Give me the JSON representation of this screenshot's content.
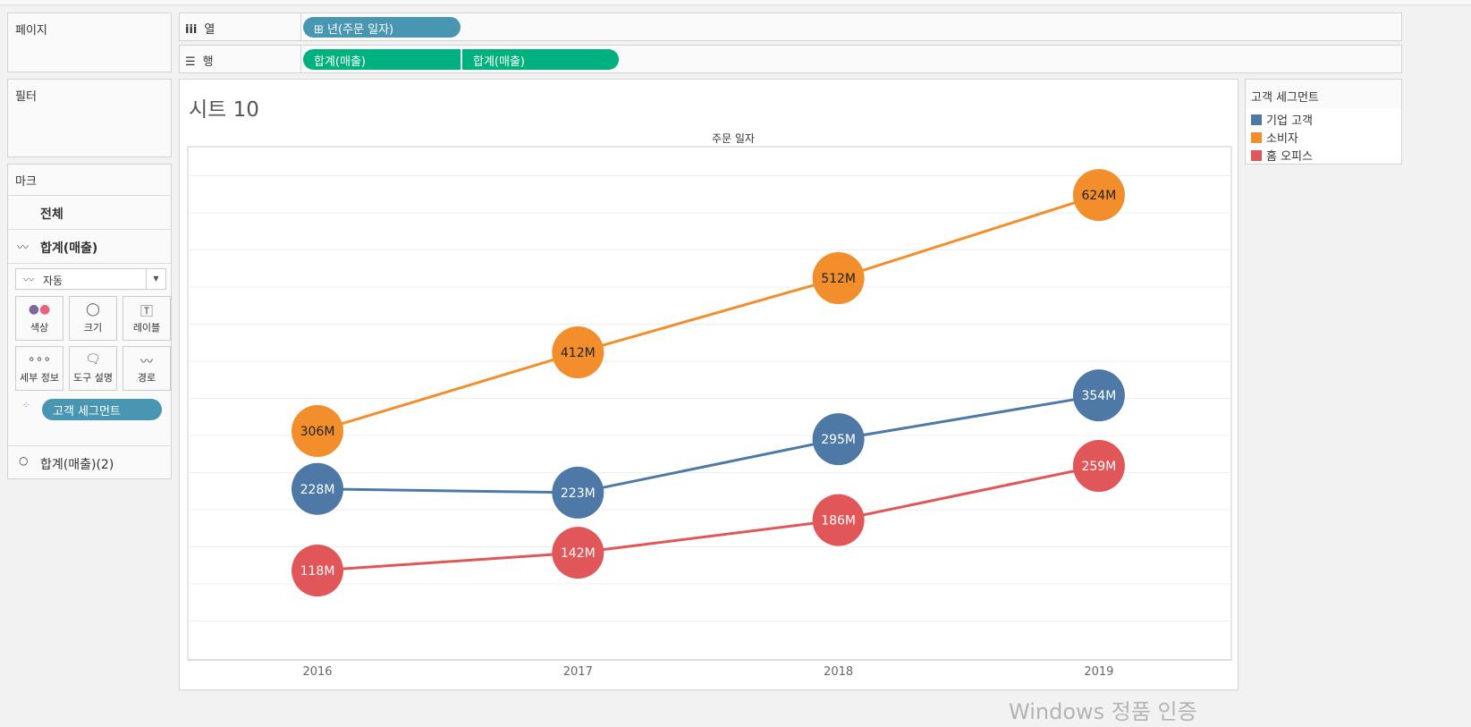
{
  "panels": {
    "pages": "페이지",
    "filters": "필터",
    "marks": "마크"
  },
  "shelves": {
    "columns": {
      "icon": "columns-icon",
      "label": "열",
      "pills": [
        {
          "label": "⊞ 년(주문 일자)",
          "color": "#4996b2"
        }
      ]
    },
    "rows": {
      "icon": "rows-icon",
      "label": "행",
      "pills": [
        {
          "label": "합계(매출)",
          "color": "#00b180"
        },
        {
          "label": "합계(매출)",
          "color": "#00b180"
        }
      ]
    }
  },
  "marks": {
    "all": "전체",
    "measure1": "합계(매출)",
    "mark_type": "자동",
    "buttons": [
      "색상",
      "크기",
      "레이블",
      "세부 정보",
      "도구 설명",
      "경로"
    ],
    "color_pill": "고객 세그먼트",
    "measure2": "합계(매출)(2)"
  },
  "sheet": {
    "title": "시트 10",
    "header": "주문 일자"
  },
  "legend": {
    "title": "고객 세그먼트",
    "items": [
      {
        "label": "기업 고객",
        "color": "#4e79a7"
      },
      {
        "label": "소비자",
        "color": "#f28e2b"
      },
      {
        "label": "홈 오피스",
        "color": "#e15759"
      }
    ]
  },
  "watermark": "Windows 정품 인증",
  "chart_data": {
    "type": "line",
    "x": [
      "2016",
      "2017",
      "2018",
      "2019"
    ],
    "ylim": [
      0,
      690
    ],
    "grid": true,
    "unit": "M",
    "series": [
      {
        "name": "기업 고객",
        "color": "#4e79a7",
        "values": [
          228,
          223,
          295,
          354
        ]
      },
      {
        "name": "소비자",
        "color": "#f28e2b",
        "values": [
          306,
          412,
          512,
          624
        ]
      },
      {
        "name": "홈 오피스",
        "color": "#e15759",
        "values": [
          118,
          142,
          186,
          259
        ]
      }
    ]
  }
}
